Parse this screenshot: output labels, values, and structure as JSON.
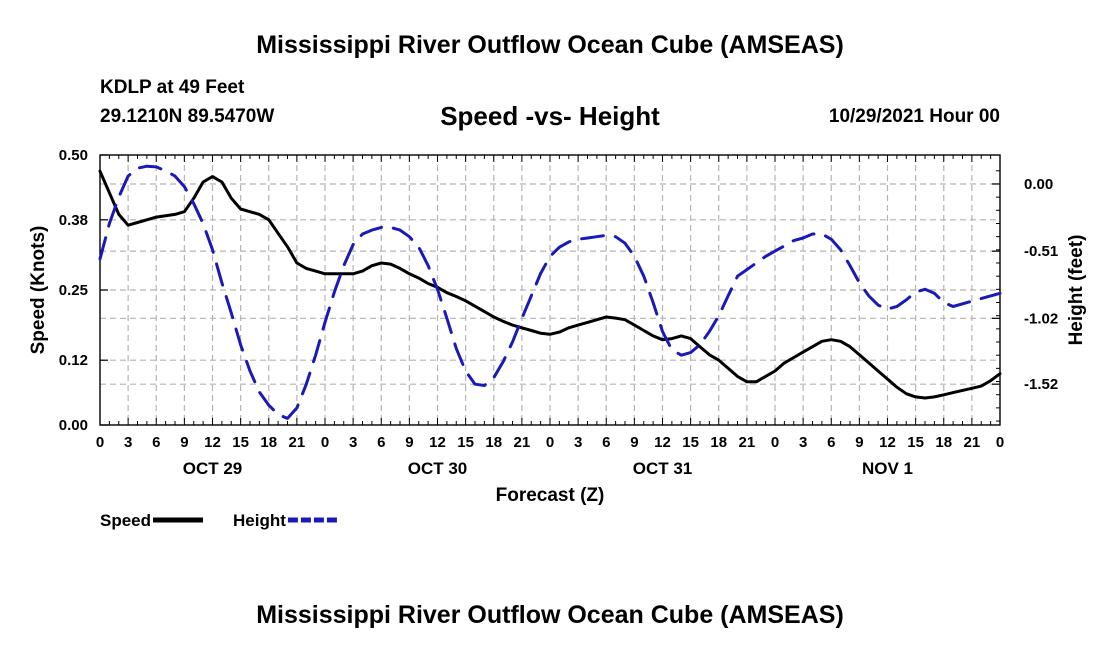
{
  "header": {
    "title": "Mississippi River Outflow Ocean Cube (AMSEAS)",
    "station": "KDLP at 49 Feet",
    "coords": "29.1210N  89.5470W",
    "subtitle": "Speed -vs- Height",
    "datetime": "10/29/2021 Hour 00",
    "footer_title": "Mississippi River Outflow Ocean Cube (AMSEAS)"
  },
  "chart_data": {
    "type": "line",
    "title": "Speed -vs- Height",
    "xlabel": "Forecast (Z)",
    "ylabel_left": "Speed (Knots)",
    "ylabel_right": "Height (feet)",
    "x_range_hours": [
      0,
      96
    ],
    "x_ticks": [
      {
        "h": 0,
        "label": "0"
      },
      {
        "h": 3,
        "label": "3"
      },
      {
        "h": 6,
        "label": "6"
      },
      {
        "h": 9,
        "label": "9"
      },
      {
        "h": 12,
        "label": "12"
      },
      {
        "h": 15,
        "label": "15"
      },
      {
        "h": 18,
        "label": "18"
      },
      {
        "h": 21,
        "label": "21"
      },
      {
        "h": 24,
        "label": "0"
      },
      {
        "h": 27,
        "label": "3"
      },
      {
        "h": 30,
        "label": "6"
      },
      {
        "h": 33,
        "label": "9"
      },
      {
        "h": 36,
        "label": "12"
      },
      {
        "h": 39,
        "label": "15"
      },
      {
        "h": 42,
        "label": "18"
      },
      {
        "h": 45,
        "label": "21"
      },
      {
        "h": 48,
        "label": "0"
      },
      {
        "h": 51,
        "label": "3"
      },
      {
        "h": 54,
        "label": "6"
      },
      {
        "h": 57,
        "label": "9"
      },
      {
        "h": 60,
        "label": "12"
      },
      {
        "h": 63,
        "label": "15"
      },
      {
        "h": 66,
        "label": "18"
      },
      {
        "h": 69,
        "label": "21"
      },
      {
        "h": 72,
        "label": "0"
      },
      {
        "h": 75,
        "label": "3"
      },
      {
        "h": 78,
        "label": "6"
      },
      {
        "h": 81,
        "label": "9"
      },
      {
        "h": 84,
        "label": "12"
      },
      {
        "h": 87,
        "label": "15"
      },
      {
        "h": 90,
        "label": "18"
      },
      {
        "h": 93,
        "label": "21"
      },
      {
        "h": 96,
        "label": "0"
      }
    ],
    "day_labels": [
      {
        "h": 12,
        "label": "OCT 29"
      },
      {
        "h": 36,
        "label": "OCT 30"
      },
      {
        "h": 60,
        "label": "OCT 31"
      },
      {
        "h": 84,
        "label": "NOV 1"
      }
    ],
    "y_left": {
      "range": [
        0.0,
        0.5
      ],
      "ticks": [
        0.0,
        0.12,
        0.25,
        0.38,
        0.5
      ],
      "tick_labels": [
        "0.00",
        "0.12",
        "0.25",
        "0.38",
        "0.50"
      ]
    },
    "y_right": {
      "range": [
        -1.83,
        0.22
      ],
      "ticks": [
        0.0,
        -0.51,
        -1.02,
        -1.52
      ],
      "tick_labels": [
        "0.00",
        "-0.51",
        "-1.02",
        "-1.52"
      ]
    },
    "series": [
      {
        "name": "Speed",
        "axis": "left",
        "color": "#000000",
        "dashed": false,
        "points": [
          [
            0,
            0.47
          ],
          [
            1,
            0.43
          ],
          [
            2,
            0.39
          ],
          [
            3,
            0.37
          ],
          [
            4,
            0.375
          ],
          [
            5,
            0.38
          ],
          [
            6,
            0.385
          ],
          [
            8,
            0.39
          ],
          [
            9,
            0.395
          ],
          [
            10,
            0.42
          ],
          [
            11,
            0.45
          ],
          [
            12,
            0.46
          ],
          [
            13,
            0.45
          ],
          [
            14,
            0.42
          ],
          [
            15,
            0.4
          ],
          [
            16,
            0.395
          ],
          [
            17,
            0.39
          ],
          [
            18,
            0.38
          ],
          [
            19,
            0.355
          ],
          [
            20,
            0.33
          ],
          [
            21,
            0.3
          ],
          [
            22,
            0.29
          ],
          [
            23,
            0.285
          ],
          [
            24,
            0.28
          ],
          [
            26,
            0.28
          ],
          [
            27,
            0.28
          ],
          [
            28,
            0.285
          ],
          [
            29,
            0.295
          ],
          [
            30,
            0.3
          ],
          [
            31,
            0.298
          ],
          [
            32,
            0.29
          ],
          [
            33,
            0.28
          ],
          [
            34,
            0.272
          ],
          [
            35,
            0.262
          ],
          [
            36,
            0.255
          ],
          [
            37,
            0.245
          ],
          [
            38,
            0.238
          ],
          [
            39,
            0.23
          ],
          [
            40,
            0.22
          ],
          [
            41,
            0.21
          ],
          [
            42,
            0.2
          ],
          [
            43,
            0.192
          ],
          [
            44,
            0.185
          ],
          [
            45,
            0.18
          ],
          [
            46,
            0.175
          ],
          [
            47,
            0.17
          ],
          [
            48,
            0.168
          ],
          [
            49,
            0.172
          ],
          [
            50,
            0.18
          ],
          [
            51,
            0.185
          ],
          [
            52,
            0.19
          ],
          [
            53,
            0.195
          ],
          [
            54,
            0.2
          ],
          [
            55,
            0.198
          ],
          [
            56,
            0.195
          ],
          [
            57,
            0.185
          ],
          [
            58,
            0.175
          ],
          [
            59,
            0.165
          ],
          [
            60,
            0.158
          ],
          [
            61,
            0.16
          ],
          [
            62,
            0.165
          ],
          [
            63,
            0.16
          ],
          [
            64,
            0.145
          ],
          [
            65,
            0.13
          ],
          [
            66,
            0.12
          ],
          [
            67,
            0.105
          ],
          [
            68,
            0.09
          ],
          [
            69,
            0.08
          ],
          [
            70,
            0.08
          ],
          [
            71,
            0.09
          ],
          [
            72,
            0.1
          ],
          [
            73,
            0.115
          ],
          [
            74,
            0.125
          ],
          [
            75,
            0.135
          ],
          [
            76,
            0.145
          ],
          [
            77,
            0.155
          ],
          [
            78,
            0.158
          ],
          [
            79,
            0.155
          ],
          [
            80,
            0.145
          ],
          [
            81,
            0.13
          ],
          [
            82,
            0.115
          ],
          [
            83,
            0.1
          ],
          [
            84,
            0.085
          ],
          [
            85,
            0.07
          ],
          [
            86,
            0.058
          ],
          [
            87,
            0.052
          ],
          [
            88,
            0.05
          ],
          [
            89,
            0.052
          ],
          [
            90,
            0.056
          ],
          [
            91,
            0.06
          ],
          [
            92,
            0.064
          ],
          [
            93,
            0.068
          ],
          [
            94,
            0.072
          ],
          [
            95,
            0.082
          ],
          [
            96,
            0.095
          ]
        ]
      },
      {
        "name": "Height",
        "axis": "right",
        "color": "#1a1ab8",
        "dashed": true,
        "points": [
          [
            0,
            -0.57
          ],
          [
            1,
            -0.3
          ],
          [
            2,
            -0.1
          ],
          [
            3,
            0.06
          ],
          [
            4,
            0.12
          ],
          [
            5,
            0.135
          ],
          [
            6,
            0.13
          ],
          [
            7,
            0.1
          ],
          [
            8,
            0.06
          ],
          [
            9,
            -0.02
          ],
          [
            10,
            -0.15
          ],
          [
            11,
            -0.3
          ],
          [
            12,
            -0.5
          ],
          [
            13,
            -0.75
          ],
          [
            14,
            -0.98
          ],
          [
            15,
            -1.22
          ],
          [
            16,
            -1.42
          ],
          [
            17,
            -1.58
          ],
          [
            18,
            -1.68
          ],
          [
            19,
            -1.75
          ],
          [
            20,
            -1.78
          ],
          [
            21,
            -1.7
          ],
          [
            22,
            -1.52
          ],
          [
            23,
            -1.3
          ],
          [
            24,
            -1.05
          ],
          [
            25,
            -0.82
          ],
          [
            26,
            -0.62
          ],
          [
            27,
            -0.46
          ],
          [
            28,
            -0.38
          ],
          [
            29,
            -0.35
          ],
          [
            30,
            -0.33
          ],
          [
            31,
            -0.33
          ],
          [
            32,
            -0.35
          ],
          [
            33,
            -0.4
          ],
          [
            34,
            -0.48
          ],
          [
            35,
            -0.62
          ],
          [
            36,
            -0.8
          ],
          [
            37,
            -1.02
          ],
          [
            38,
            -1.25
          ],
          [
            39,
            -1.42
          ],
          [
            40,
            -1.52
          ],
          [
            41,
            -1.53
          ],
          [
            42,
            -1.47
          ],
          [
            43,
            -1.35
          ],
          [
            44,
            -1.2
          ],
          [
            45,
            -1.02
          ],
          [
            46,
            -0.85
          ],
          [
            47,
            -0.68
          ],
          [
            48,
            -0.55
          ],
          [
            49,
            -0.48
          ],
          [
            50,
            -0.44
          ],
          [
            51,
            -0.42
          ],
          [
            52,
            -0.41
          ],
          [
            53,
            -0.4
          ],
          [
            54,
            -0.39
          ],
          [
            55,
            -0.4
          ],
          [
            56,
            -0.45
          ],
          [
            57,
            -0.55
          ],
          [
            58,
            -0.7
          ],
          [
            59,
            -0.9
          ],
          [
            60,
            -1.12
          ],
          [
            61,
            -1.26
          ],
          [
            62,
            -1.3
          ],
          [
            63,
            -1.28
          ],
          [
            64,
            -1.22
          ],
          [
            65,
            -1.12
          ],
          [
            66,
            -1.0
          ],
          [
            67,
            -0.85
          ],
          [
            68,
            -0.7
          ],
          [
            69,
            -0.65
          ],
          [
            70,
            -0.6
          ],
          [
            71,
            -0.55
          ],
          [
            72,
            -0.51
          ],
          [
            73,
            -0.47
          ],
          [
            74,
            -0.43
          ],
          [
            75,
            -0.41
          ],
          [
            76,
            -0.38
          ],
          [
            77,
            -0.38
          ],
          [
            78,
            -0.42
          ],
          [
            79,
            -0.5
          ],
          [
            80,
            -0.62
          ],
          [
            81,
            -0.75
          ],
          [
            82,
            -0.85
          ],
          [
            83,
            -0.92
          ],
          [
            84,
            -0.95
          ],
          [
            85,
            -0.93
          ],
          [
            86,
            -0.88
          ],
          [
            87,
            -0.82
          ],
          [
            88,
            -0.8
          ],
          [
            89,
            -0.83
          ],
          [
            90,
            -0.9
          ],
          [
            91,
            -0.93
          ],
          [
            96,
            -0.83
          ]
        ]
      }
    ],
    "legend": [
      {
        "label": "Speed",
        "color": "#000000",
        "dashed": false
      },
      {
        "label": "Height",
        "color": "#1a1ab8",
        "dashed": true
      }
    ],
    "grid": true,
    "legend_position": "bottom-left"
  }
}
